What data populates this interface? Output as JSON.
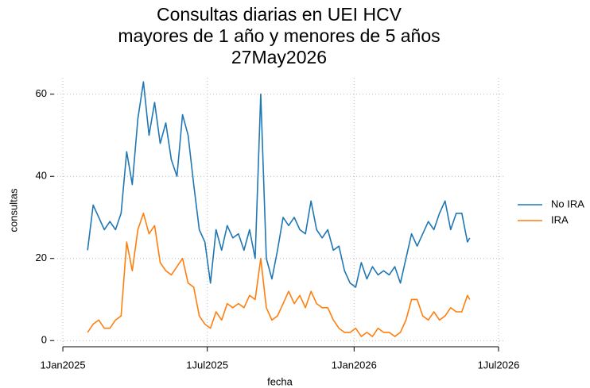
{
  "chart_data": {
    "type": "line",
    "title": [
      "Consultas diarias en UEI HCV",
      "mayores de 1 año y menores de 5 años",
      "27May2026"
    ],
    "xlabel": "fecha",
    "ylabel": "consultas",
    "x": [
      "2025-02-01",
      "2025-02-08",
      "2025-02-15",
      "2025-02-22",
      "2025-03-01",
      "2025-03-08",
      "2025-03-15",
      "2025-03-22",
      "2025-03-29",
      "2025-04-05",
      "2025-04-12",
      "2025-04-19",
      "2025-04-26",
      "2025-05-03",
      "2025-05-10",
      "2025-05-17",
      "2025-05-24",
      "2025-05-31",
      "2025-06-07",
      "2025-06-14",
      "2025-06-21",
      "2025-06-28",
      "2025-07-05",
      "2025-07-12",
      "2025-07-19",
      "2025-07-26",
      "2025-08-02",
      "2025-08-09",
      "2025-08-16",
      "2025-08-23",
      "2025-08-30",
      "2025-09-06",
      "2025-09-13",
      "2025-09-20",
      "2025-09-27",
      "2025-10-04",
      "2025-10-11",
      "2025-10-18",
      "2025-10-25",
      "2025-11-01",
      "2025-11-08",
      "2025-11-15",
      "2025-11-22",
      "2025-11-29",
      "2025-12-06",
      "2025-12-13",
      "2025-12-20",
      "2025-12-27",
      "2026-01-03",
      "2026-01-10",
      "2026-01-17",
      "2026-01-24",
      "2026-01-31",
      "2026-02-07",
      "2026-02-14",
      "2026-02-21",
      "2026-02-28",
      "2026-03-07",
      "2026-03-14",
      "2026-03-21",
      "2026-03-28",
      "2026-04-04",
      "2026-04-11",
      "2026-04-18",
      "2026-04-25",
      "2026-05-02",
      "2026-05-09",
      "2026-05-16",
      "2026-05-23",
      "2026-05-26"
    ],
    "series": [
      {
        "name": "No IRA",
        "color": "#1f77b4",
        "values": [
          22,
          33,
          30,
          27,
          29,
          27,
          31,
          46,
          38,
          54,
          63,
          50,
          58,
          48,
          53,
          44,
          40,
          55,
          50,
          38,
          27,
          24,
          14,
          27,
          22,
          28,
          25,
          26,
          22,
          27,
          20,
          60,
          20,
          15,
          22,
          30,
          28,
          30,
          27,
          26,
          34,
          27,
          25,
          27,
          22,
          23,
          17,
          14,
          13,
          19,
          15,
          18,
          16,
          17,
          16,
          18,
          14,
          20,
          26,
          23,
          26,
          29,
          27,
          31,
          34,
          27,
          31,
          31,
          24,
          25
        ]
      },
      {
        "name": "IRA",
        "color": "#ff7f0e",
        "values": [
          2,
          4,
          5,
          3,
          3,
          5,
          6,
          24,
          17,
          27,
          31,
          26,
          28,
          19,
          17,
          16,
          18,
          20,
          14,
          13,
          6,
          4,
          3,
          7,
          5,
          9,
          8,
          9,
          8,
          11,
          10,
          20,
          8,
          5,
          6,
          9,
          12,
          9,
          11,
          8,
          12,
          9,
          8,
          8,
          5,
          3,
          2,
          2,
          3,
          1,
          2,
          1,
          3,
          2,
          2,
          1,
          2,
          5,
          10,
          10,
          6,
          5,
          7,
          5,
          6,
          8,
          7,
          7,
          11,
          10
        ]
      }
    ],
    "xlim": [
      "2024-12-21",
      "2026-07-09"
    ],
    "xticks": [
      {
        "value": "2025-01-01",
        "label": "1Jan2025"
      },
      {
        "value": "2025-07-01",
        "label": "1Jul2025"
      },
      {
        "value": "2026-01-01",
        "label": "1Jan2026"
      },
      {
        "value": "2026-07-01",
        "label": "1Jul2026"
      }
    ],
    "ylim": [
      -1.5,
      64
    ],
    "yticks": [
      0,
      20,
      40,
      60
    ],
    "grid": true,
    "legend": "right"
  }
}
